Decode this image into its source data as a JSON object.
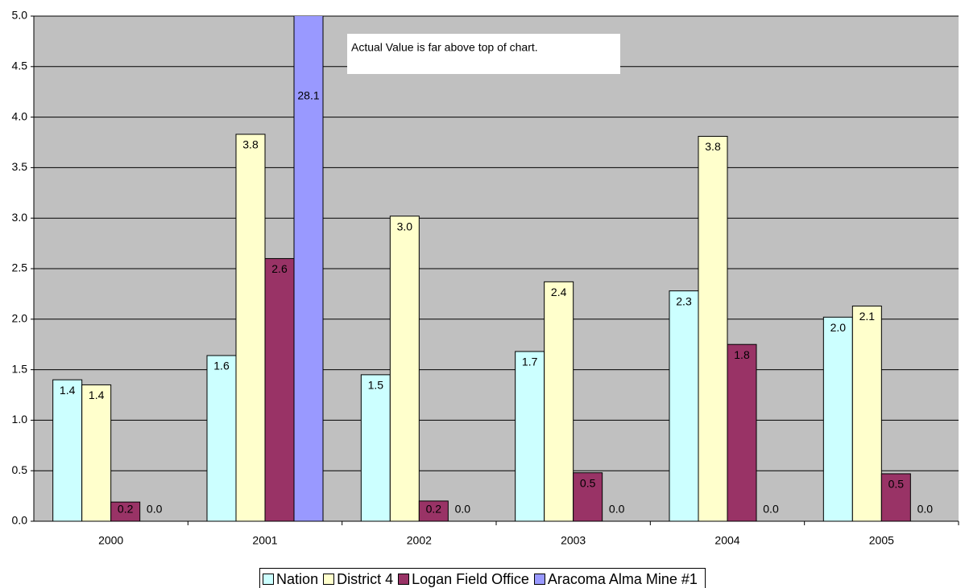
{
  "chart_data": {
    "type": "bar",
    "categories": [
      "2000",
      "2001",
      "2002",
      "2003",
      "2004",
      "2005"
    ],
    "series": [
      {
        "name": "Nation",
        "color": "#ccffff",
        "values": [
          1.4,
          1.64,
          1.45,
          1.68,
          2.28,
          2.02
        ],
        "value_labels": [
          "1.4",
          "1.6",
          "1.5",
          "1.7",
          "2.3",
          "2.0"
        ]
      },
      {
        "name": "District 4",
        "color": "#ffffcc",
        "values": [
          1.35,
          3.83,
          3.02,
          2.37,
          3.81,
          2.13
        ],
        "value_labels": [
          "1.4",
          "3.8",
          "3.0",
          "2.4",
          "3.8",
          "2.1"
        ]
      },
      {
        "name": "Logan Field Office",
        "color": "#993366",
        "values": [
          0.19,
          2.6,
          0.2,
          0.48,
          1.75,
          0.47
        ],
        "value_labels": [
          "0.2",
          "2.6",
          "0.2",
          "0.5",
          "1.8",
          "0.5"
        ]
      },
      {
        "name": "Aracoma Alma Mine #1",
        "color": "#9999ff",
        "values": [
          0,
          28.1,
          0,
          0,
          0,
          0
        ],
        "value_labels": [
          "0.0",
          "28.1",
          "0.0",
          "0.0",
          "0.0",
          "0.0"
        ]
      }
    ],
    "annotation": "Actual Value is far above top of chart.",
    "ylim": [
      0,
      5
    ],
    "yticks": [
      {
        "value": 0,
        "label": "0.0"
      },
      {
        "value": 0.5,
        "label": "0.5"
      },
      {
        "value": 1,
        "label": "1.0"
      },
      {
        "value": 1.5,
        "label": "1.5"
      },
      {
        "value": 2,
        "label": "2.0"
      },
      {
        "value": 2.5,
        "label": "2.5"
      },
      {
        "value": 3,
        "label": "3.0"
      },
      {
        "value": 3.5,
        "label": "3.5"
      },
      {
        "value": 4,
        "label": "4.0"
      },
      {
        "value": 4.5,
        "label": "4.5"
      },
      {
        "value": 5,
        "label": "5.0"
      }
    ],
    "grid": true,
    "legend": "bottom"
  }
}
